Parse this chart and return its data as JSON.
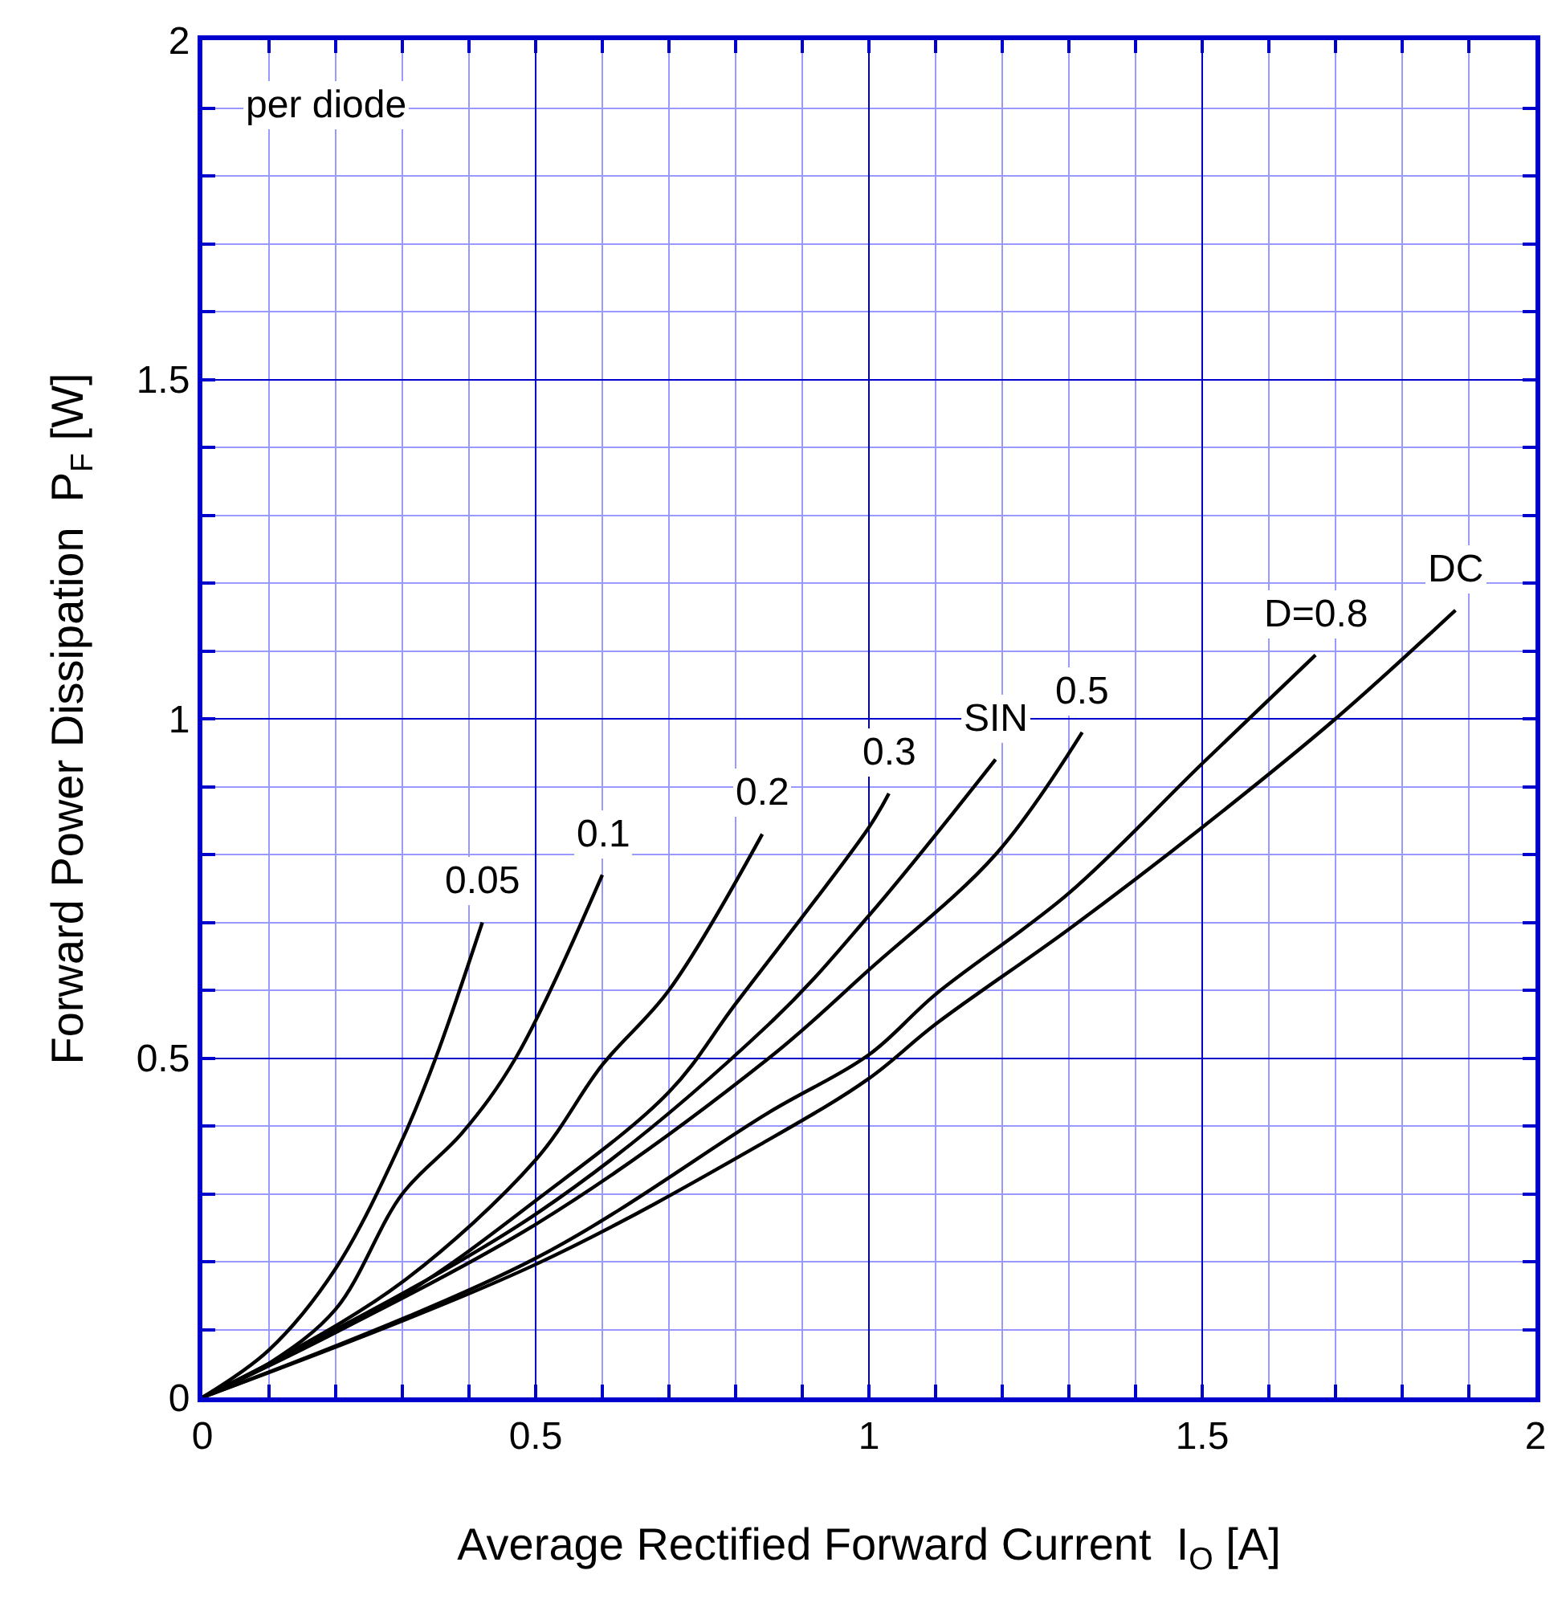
{
  "chart_data": {
    "type": "line",
    "xlabel": "Average Rectified Forward Current  I$_{O}$ [A]",
    "ylabel": "Forward Power Dissipation  P$_{F}$ [W]",
    "xlim": [
      0,
      2
    ],
    "ylim": [
      0,
      2
    ],
    "xticks": [
      0,
      {
        "value": 0.1,
        "label": null
      },
      {
        "value": 0.2,
        "label": null
      },
      {
        "value": 0.3,
        "label": null
      },
      {
        "value": 0.4,
        "label": null
      },
      0.5,
      {
        "value": 0.6,
        "label": null
      },
      {
        "value": 0.7,
        "label": null
      },
      {
        "value": 0.8,
        "label": null
      },
      {
        "value": 0.9,
        "label": null
      },
      1,
      {
        "value": 1.1,
        "label": null
      },
      {
        "value": 1.2,
        "label": null
      },
      {
        "value": 1.3,
        "label": null
      },
      {
        "value": 1.4,
        "label": null
      },
      1.5,
      {
        "value": 1.6,
        "label": null
      },
      {
        "value": 1.7,
        "label": null
      },
      {
        "value": 1.8,
        "label": null
      },
      {
        "value": 1.9,
        "label": null
      },
      2
    ],
    "yticks": [
      0,
      {
        "value": 0.1,
        "label": null
      },
      {
        "value": 0.2,
        "label": null
      },
      {
        "value": 0.3,
        "label": null
      },
      {
        "value": 0.4,
        "label": null
      },
      0.5,
      {
        "value": 0.6,
        "label": null
      },
      {
        "value": 0.7,
        "label": null
      },
      {
        "value": 0.8,
        "label": null
      },
      {
        "value": 0.9,
        "label": null
      },
      1,
      {
        "value": 1.1,
        "label": null
      },
      {
        "value": 1.2,
        "label": null
      },
      {
        "value": 1.3,
        "label": null
      },
      {
        "value": 1.4,
        "label": null
      },
      1.5,
      {
        "value": 1.6,
        "label": null
      },
      {
        "value": 1.7,
        "label": null
      },
      {
        "value": 1.8,
        "label": null
      },
      {
        "value": 1.9,
        "label": null
      },
      2
    ],
    "grid": true,
    "legend": false,
    "marker": "none",
    "line_style": "solid",
    "annotations": [
      "per diode"
    ],
    "series": [
      {
        "name": "0.05",
        "color": "#000000",
        "x": [
          0,
          0.1,
          0.2,
          0.3,
          0.35,
          0.42
        ],
        "values": [
          0,
          0.07,
          0.19,
          0.38,
          0.5,
          0.7
        ]
      },
      {
        "name": "0.1",
        "color": "#000000",
        "x": [
          0,
          0.1,
          0.2,
          0.3,
          0.39,
          0.47,
          0.6
        ],
        "values": [
          0,
          0.05,
          0.13,
          0.3,
          0.39,
          0.5,
          0.77
        ]
      },
      {
        "name": "0.2",
        "color": "#000000",
        "x": [
          0,
          0.1,
          0.3,
          0.5,
          0.6,
          0.7,
          0.84
        ],
        "values": [
          0,
          0.05,
          0.17,
          0.35,
          0.49,
          0.6,
          0.83
        ]
      },
      {
        "name": "0.3",
        "color": "#000000",
        "x": [
          0,
          0.3,
          0.5,
          0.7,
          0.8,
          1.0,
          1.03
        ],
        "values": [
          0,
          0.15,
          0.29,
          0.45,
          0.58,
          0.84,
          0.89
        ]
      },
      {
        "name": "SIN",
        "color": "#000000",
        "x": [
          0,
          0.5,
          0.85,
          1.0,
          1.19
        ],
        "values": [
          0,
          0.27,
          0.55,
          0.71,
          0.94
        ]
      },
      {
        "name": "0.5",
        "color": "#000000",
        "x": [
          0,
          0.5,
          0.85,
          1.0,
          1.19,
          1.32
        ],
        "values": [
          0,
          0.255,
          0.5,
          0.63,
          0.8,
          0.98
        ]
      },
      {
        "name": "D=0.8",
        "color": "#000000",
        "x": [
          0,
          0.5,
          0.85,
          1.0,
          1.1,
          1.3,
          1.5,
          1.67
        ],
        "values": [
          0,
          0.205,
          0.42,
          0.505,
          0.594,
          0.743,
          0.934,
          1.094
        ]
      },
      {
        "name": "DC",
        "color": "#000000",
        "x": [
          0,
          0.5,
          0.85,
          1.0,
          1.1,
          1.3,
          1.5,
          1.7,
          1.88
        ],
        "values": [
          0,
          0.196,
          0.38,
          0.47,
          0.55,
          0.69,
          0.84,
          1.0,
          1.16
        ]
      }
    ]
  }
}
